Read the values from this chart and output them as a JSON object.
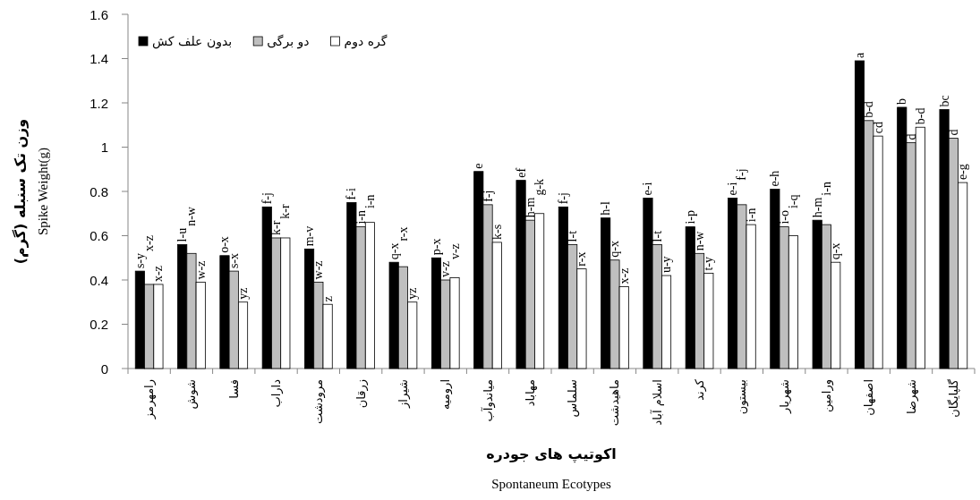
{
  "chart_data": {
    "type": "bar",
    "xlabel": "اکوتیپ های جودره\nSpontaneum Ecotypes",
    "ylabel": "وزن تک سنبله (گرم)\nSpike Weight(g)",
    "categories": [
      "رامهرمز",
      "شوش",
      "فسا",
      "داراب",
      "مرودشت",
      "زرقان",
      "شیراز",
      "ارومیه",
      "میاندوآب",
      "مهاباد",
      "سلماس",
      "ماهیدشت",
      "اسلام آباد",
      "کرند",
      "بیستون",
      "شهریار",
      "ورامین",
      "اصفهان",
      "شهرضا",
      "گلپایگان"
    ],
    "series": [
      {
        "name": "بدون علف کش",
        "color": "#000000",
        "values": [
          0.44,
          0.56,
          0.51,
          0.73,
          0.54,
          0.75,
          0.48,
          0.5,
          0.89,
          0.85,
          0.73,
          0.68,
          0.77,
          0.64,
          0.77,
          0.81,
          0.67,
          1.39,
          1.18,
          1.17
        ],
        "value_labels": [
          "s-y",
          "l-u",
          "o-x",
          "f-j",
          "m-v",
          "f-i",
          "q-x",
          "p-x",
          "e",
          "ef",
          "f-j",
          "h-l",
          "e-i",
          "i-p",
          "e-i",
          "e-h",
          "h-m",
          "a",
          "b",
          "bc"
        ]
      },
      {
        "name": "دو برگی",
        "color": "#bfbfbf",
        "values": [
          0.38,
          0.52,
          0.44,
          0.59,
          0.39,
          0.64,
          0.46,
          0.4,
          0.74,
          0.67,
          0.56,
          0.49,
          0.56,
          0.52,
          0.74,
          0.64,
          0.65,
          1.12,
          1.02,
          1.04
        ],
        "value_labels": [
          "x-z",
          "n-w",
          "s-x",
          "k-r",
          "w-z",
          "i-n",
          "r-x",
          "v-z",
          "f-j",
          "h-m",
          "l-t",
          "q-x",
          "l-t",
          "n-w",
          "f-j",
          "i-o",
          "i-n",
          "b-d",
          "d",
          "d"
        ]
      },
      {
        "name": "گره دوم",
        "color": "#ffffff",
        "values": [
          0.38,
          0.39,
          0.3,
          0.59,
          0.29,
          0.66,
          0.3,
          0.41,
          0.57,
          0.7,
          0.45,
          0.37,
          0.42,
          0.43,
          0.65,
          0.6,
          0.48,
          1.05,
          1.09,
          0.84
        ],
        "value_labels": [
          "x-z",
          "w-z",
          "yz",
          "k-r",
          "z",
          "i-n",
          "yz",
          "v-z",
          "k-s",
          "g-k",
          "r-x",
          "x-z",
          "u-y",
          "t-y",
          "i-n",
          "i-q",
          "q-x",
          "cd",
          "b-d",
          "e-g"
        ]
      }
    ],
    "ylim": [
      0,
      1.6
    ],
    "yticks": [
      0,
      0.2,
      0.4,
      0.6,
      0.8,
      1,
      1.2,
      1.4,
      1.6
    ],
    "legend": "top left"
  }
}
